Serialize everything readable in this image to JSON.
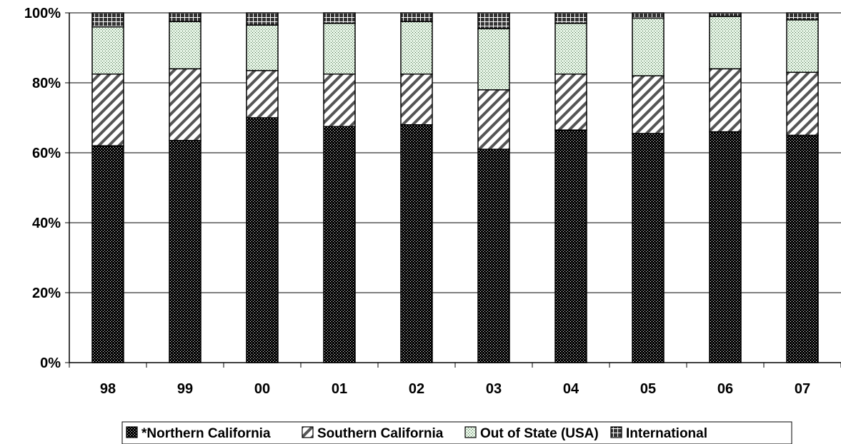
{
  "chart_data": {
    "type": "bar",
    "stacked": true,
    "percent": true,
    "categories": [
      "98",
      "99",
      "00",
      "01",
      "02",
      "03",
      "04",
      "05",
      "06",
      "07"
    ],
    "series": [
      {
        "name": "*Northern California",
        "values": [
          62,
          63.5,
          70,
          67.5,
          68,
          61,
          66.5,
          65.5,
          66,
          65
        ]
      },
      {
        "name": "Southern California",
        "values": [
          20.5,
          20.5,
          13.5,
          15,
          14.5,
          17,
          16,
          16.5,
          18,
          18
        ]
      },
      {
        "name": "Out of State (USA)",
        "values": [
          13.5,
          13.5,
          13,
          14.5,
          15,
          17.5,
          14.5,
          16.5,
          15,
          15
        ]
      },
      {
        "name": "International",
        "values": [
          4,
          2.5,
          3.5,
          3,
          2.5,
          4.5,
          3,
          1.5,
          1,
          2
        ]
      }
    ],
    "y_ticks": [
      "0%",
      "20%",
      "40%",
      "60%",
      "80%",
      "100%"
    ],
    "ylim": [
      0,
      100
    ],
    "grid": true,
    "legend_position": "bottom"
  }
}
